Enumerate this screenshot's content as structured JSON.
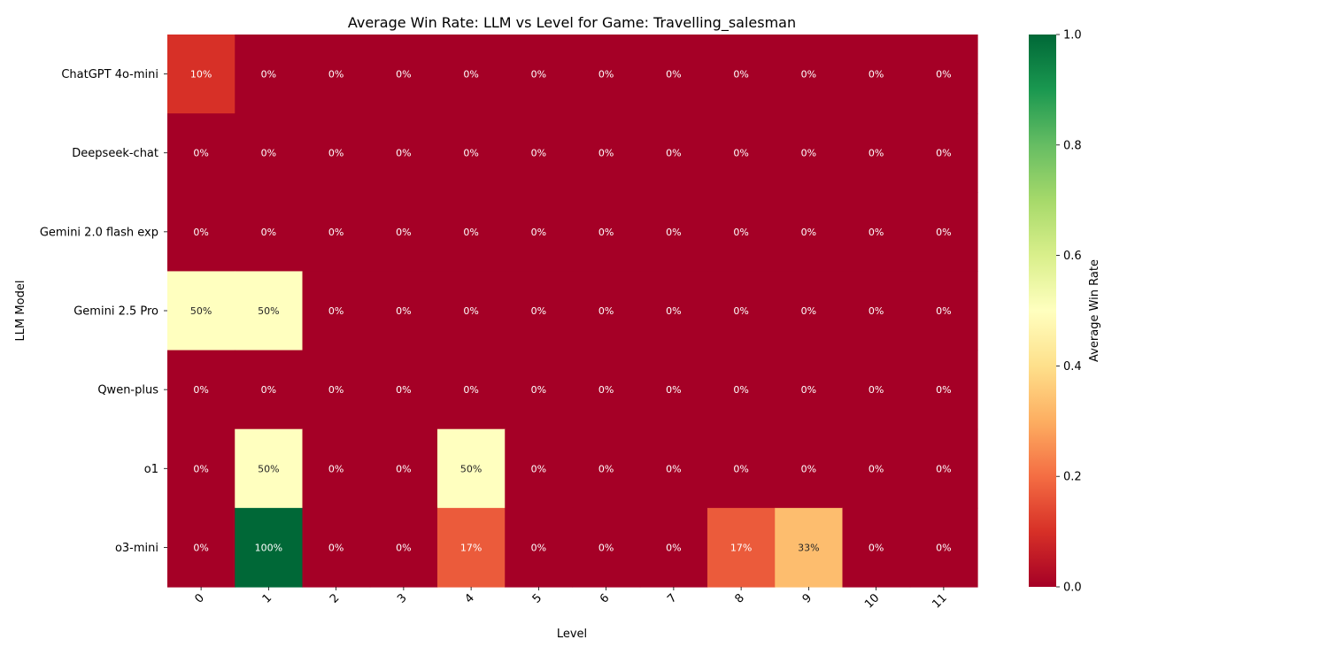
{
  "chart_data": {
    "type": "heatmap",
    "title": "Average Win Rate: LLM vs Level for Game: Travelling_salesman",
    "xlabel": "Level",
    "ylabel": "LLM Model",
    "x_categories": [
      "0",
      "1",
      "2",
      "3",
      "4",
      "5",
      "6",
      "7",
      "8",
      "9",
      "10",
      "11"
    ],
    "y_categories": [
      "ChatGPT 4o-mini",
      "Deepseek-chat",
      "Gemini 2.0 flash exp",
      "Gemini 2.5 Pro",
      "Qwen-plus",
      "o1",
      "o3-mini"
    ],
    "values": [
      [
        0.1,
        0,
        0,
        0,
        0,
        0,
        0,
        0,
        0,
        0,
        0,
        0
      ],
      [
        0,
        0,
        0,
        0,
        0,
        0,
        0,
        0,
        0,
        0,
        0,
        0
      ],
      [
        0,
        0,
        0,
        0,
        0,
        0,
        0,
        0,
        0,
        0,
        0,
        0
      ],
      [
        0.5,
        0.5,
        0,
        0,
        0,
        0,
        0,
        0,
        0,
        0,
        0,
        0
      ],
      [
        0,
        0,
        0,
        0,
        0,
        0,
        0,
        0,
        0,
        0,
        0,
        0
      ],
      [
        0,
        0.5,
        0,
        0,
        0.5,
        0,
        0,
        0,
        0,
        0,
        0,
        0
      ],
      [
        0,
        1.0,
        0,
        0,
        0.17,
        0,
        0,
        0,
        0.17,
        0.33,
        0,
        0
      ]
    ],
    "annotations": [
      [
        "10%",
        "0%",
        "0%",
        "0%",
        "0%",
        "0%",
        "0%",
        "0%",
        "0%",
        "0%",
        "0%",
        "0%"
      ],
      [
        "0%",
        "0%",
        "0%",
        "0%",
        "0%",
        "0%",
        "0%",
        "0%",
        "0%",
        "0%",
        "0%",
        "0%"
      ],
      [
        "0%",
        "0%",
        "0%",
        "0%",
        "0%",
        "0%",
        "0%",
        "0%",
        "0%",
        "0%",
        "0%",
        "0%"
      ],
      [
        "50%",
        "50%",
        "0%",
        "0%",
        "0%",
        "0%",
        "0%",
        "0%",
        "0%",
        "0%",
        "0%",
        "0%"
      ],
      [
        "0%",
        "0%",
        "0%",
        "0%",
        "0%",
        "0%",
        "0%",
        "0%",
        "0%",
        "0%",
        "0%",
        "0%"
      ],
      [
        "0%",
        "50%",
        "0%",
        "0%",
        "50%",
        "0%",
        "0%",
        "0%",
        "0%",
        "0%",
        "0%",
        "0%"
      ],
      [
        "0%",
        "100%",
        "0%",
        "0%",
        "17%",
        "0%",
        "0%",
        "0%",
        "17%",
        "33%",
        "0%",
        "0%"
      ]
    ],
    "colormap": "RdYlGn",
    "colorbar": {
      "label": "Average Win Rate",
      "range": [
        0,
        1
      ],
      "ticks": [
        "0.0",
        "0.2",
        "0.4",
        "0.6",
        "0.8",
        "1.0"
      ]
    },
    "grid": false,
    "colors": {
      "cmap_stops": [
        "#a50026",
        "#d73027",
        "#f46d43",
        "#fdae61",
        "#fee08b",
        "#ffffbf",
        "#d9ef8b",
        "#a6d96a",
        "#66bd63",
        "#1a9850",
        "#006837"
      ]
    }
  }
}
